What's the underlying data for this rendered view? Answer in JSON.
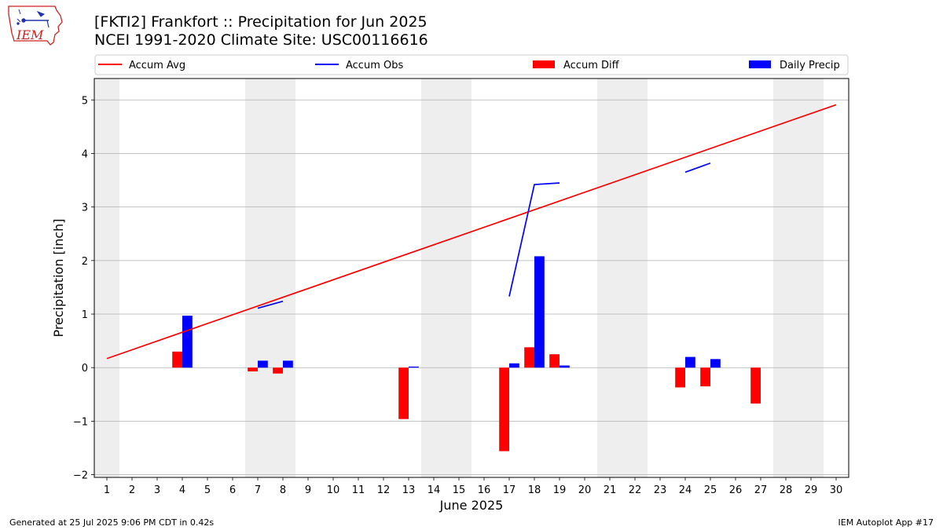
{
  "header": {
    "title_line1": "[FKTI2] Frankfort :: Precipitation for Jun 2025",
    "title_line2": "NCEI 1991-2020 Climate Site: USC00116616"
  },
  "logo": {
    "text": "IEM",
    "color": "#cc2222"
  },
  "footer": {
    "left": "Generated at 25 Jul 2025 9:06 PM CDT in 0.42s",
    "right": "IEM Autoplot App #17"
  },
  "chart_data": {
    "type": "bar",
    "xlabel": "June 2025",
    "ylabel": "Precipitation [inch]",
    "xlim": [
      0.5,
      30.5
    ],
    "ylim": [
      -2.05,
      5.4
    ],
    "yticks": [
      -2,
      -1,
      0,
      1,
      2,
      3,
      4,
      5
    ],
    "ytick_labels": [
      "−2",
      "−1",
      "0",
      "1",
      "2",
      "3",
      "4",
      "5"
    ],
    "days": [
      1,
      2,
      3,
      4,
      5,
      6,
      7,
      8,
      9,
      10,
      11,
      12,
      13,
      14,
      15,
      16,
      17,
      18,
      19,
      20,
      21,
      22,
      23,
      24,
      25,
      26,
      27,
      28,
      29,
      30
    ],
    "grid": "horizontal",
    "weekend_shading": [
      [
        0.5,
        1.5
      ],
      [
        6.5,
        8.5
      ],
      [
        13.5,
        15.5
      ],
      [
        20.5,
        22.5
      ],
      [
        27.5,
        29.5
      ]
    ],
    "legend": {
      "placement": "top",
      "entries": [
        {
          "label": "Accum Avg",
          "kind": "line",
          "color": "#ff0000"
        },
        {
          "label": "Accum Obs",
          "kind": "line",
          "color": "#0000ff"
        },
        {
          "label": "Accum Diff",
          "kind": "bar",
          "color": "#ff0000"
        },
        {
          "label": "Daily Precip",
          "kind": "bar",
          "color": "#0000ff"
        }
      ]
    },
    "series": [
      {
        "name": "Accum Avg",
        "type": "line",
        "color": "#ff0000",
        "x": [
          1,
          30
        ],
        "values": [
          0.17,
          4.91
        ]
      },
      {
        "name": "Accum Obs",
        "type": "line",
        "color": "#0000ff",
        "segments": [
          {
            "x": [
              7,
              8
            ],
            "values": [
              1.11,
              1.24
            ]
          },
          {
            "x": [
              17,
              18,
              19
            ],
            "values": [
              1.33,
              3.42,
              3.45
            ]
          },
          {
            "x": [
              24,
              25
            ],
            "values": [
              3.65,
              3.82
            ]
          }
        ]
      },
      {
        "name": "Accum Diff",
        "type": "bar",
        "color": "#ff0000",
        "x": [
          4,
          7,
          8,
          13,
          17,
          18,
          19,
          24,
          25,
          27
        ],
        "values": [
          0.3,
          -0.07,
          -0.11,
          -0.96,
          -1.56,
          0.38,
          0.25,
          -0.37,
          -0.35,
          -0.67
        ]
      },
      {
        "name": "Daily Precip",
        "type": "bar",
        "color": "#0000ff",
        "x": [
          4,
          7,
          8,
          13,
          17,
          18,
          19,
          24,
          25
        ],
        "values": [
          0.97,
          0.13,
          0.13,
          0.02,
          0.08,
          2.08,
          0.04,
          0.2,
          0.16
        ]
      }
    ]
  }
}
